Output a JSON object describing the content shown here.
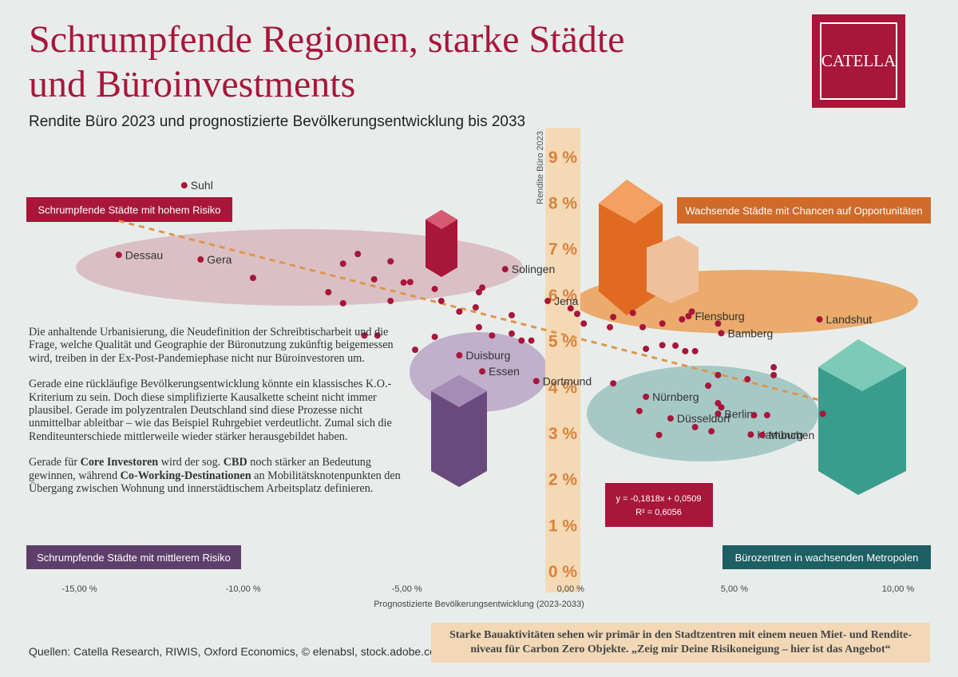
{
  "header": {
    "title_lines": [
      "Schrumpfende Regionen, starke Städte",
      "und Büroinvestments"
    ],
    "logo": "CATELLA"
  },
  "chart_data": {
    "type": "scatter",
    "title": "Rendite Büro 2023 und prognostizierte Bevölkerungsentwicklung bis 2033",
    "x_label": "Prognostizierte Bevölkerungsentwicklung (2023-2033)",
    "y_label": "Rendite Büro 2023",
    "xlim": [
      -16.5,
      11
    ],
    "ylim": [
      0,
      9.5
    ],
    "xticks": [
      {
        "value": -15,
        "label": "-15,00 %"
      },
      {
        "value": -10,
        "label": "-10,00 %"
      },
      {
        "value": -5,
        "label": "-5,00 %"
      },
      {
        "value": 0,
        "label": "0,00 %"
      },
      {
        "value": 5,
        "label": "5,00 %"
      },
      {
        "value": 10,
        "label": "10,00 %"
      }
    ],
    "yticks": [
      {
        "value": 0,
        "label": "0 %"
      },
      {
        "value": 1,
        "label": "1 %"
      },
      {
        "value": 2,
        "label": "2 %"
      },
      {
        "value": 3,
        "label": "3 %"
      },
      {
        "value": 4,
        "label": "4 %"
      },
      {
        "value": 5,
        "label": "5 %"
      },
      {
        "value": 6,
        "label": "6 %"
      },
      {
        "value": 7,
        "label": "7 %"
      },
      {
        "value": 8,
        "label": "8 %"
      },
      {
        "value": 9,
        "label": "9 %"
      }
    ],
    "color": "#a8163a",
    "x": [
      -11.8,
      -13.8,
      -11.3,
      -2.0,
      -0.7,
      3.6,
      7.6,
      4.6,
      -3.4,
      -2.7,
      -1.05,
      2.3,
      3.05,
      4.5,
      5.5,
      5.85,
      -9.7,
      -6.95,
      -6.5,
      -5.5,
      -7.4,
      -6.0,
      -5.1,
      -4.9,
      -5.5,
      -4.15,
      -3.95,
      -2.8,
      -2.7,
      -3.4,
      -2.9,
      -1.8,
      -2.8,
      -2.4,
      -1.8,
      -1.5,
      -1.2,
      -4.15,
      -4.75,
      -5.9,
      -6.3,
      -6.95,
      0.0,
      0.2,
      0.4,
      1.2,
      1.3,
      1.9,
      2.2,
      2.8,
      3.4,
      3.7,
      4.5,
      2.3,
      2.8,
      3.2,
      3.5,
      3.8,
      1.3,
      4.2,
      4.5,
      5.4,
      6.2,
      6.2,
      2.1,
      3.8,
      4.5,
      4.6,
      5.6,
      6.0,
      7.7,
      2.7,
      4.3
    ],
    "values": [
      8.37,
      6.86,
      6.76,
      6.55,
      5.86,
      5.53,
      5.46,
      5.16,
      4.68,
      4.33,
      4.12,
      3.78,
      3.31,
      3.41,
      2.96,
      2.95,
      6.36,
      6.67,
      6.88,
      6.72,
      6.05,
      6.33,
      6.26,
      6.27,
      5.86,
      6.12,
      5.86,
      6.05,
      6.15,
      5.63,
      5.72,
      5.55,
      5.29,
      5.11,
      5.15,
      5.0,
      5.0,
      5.08,
      4.8,
      5.11,
      5.11,
      5.81,
      5.7,
      5.58,
      5.37,
      5.29,
      5.51,
      5.6,
      5.29,
      5.37,
      5.46,
      5.63,
      5.37,
      4.82,
      4.9,
      4.89,
      4.77,
      4.77,
      4.07,
      4.02,
      4.25,
      4.16,
      4.42,
      4.25,
      3.47,
      3.12,
      3.64,
      3.55,
      3.38,
      3.38,
      3.41,
      2.95,
      3.03
    ],
    "point_labels": [
      "Suhl",
      "Dessau",
      "Gera",
      "Solingen",
      "Jena",
      "Flensburg",
      "Landshut",
      "Bamberg",
      "Duisburg",
      "Essen",
      "Dortmund",
      "Nürnberg",
      "Düsseldorf",
      "Berlin",
      "Hamburg",
      "München",
      null,
      null,
      null,
      null,
      null,
      null,
      null,
      null,
      null,
      null,
      null,
      null,
      null,
      null,
      null,
      null,
      null,
      null,
      null,
      null,
      null,
      null,
      null,
      null,
      null,
      null,
      null,
      null,
      null,
      null,
      null,
      null,
      null,
      null,
      null,
      null,
      null,
      null,
      null,
      null,
      null,
      null,
      null,
      null,
      null,
      null,
      null,
      null,
      null,
      null,
      null,
      null,
      null,
      null,
      null,
      null,
      null
    ],
    "trendline": {
      "slope": -0.1818,
      "intercept": 5.09,
      "color": "#e0954a",
      "dashed": true
    },
    "equation": [
      "y =  -0,1818x + 0,0509",
      "R² = 0,6056"
    ],
    "quadrants": [
      {
        "label": "Schrumpfende Städte mit hohem Risiko",
        "color": "#a8163a"
      },
      {
        "label": "Wachsende Städte mit Chancen auf Opportunitäten",
        "color": "#d06a2a"
      },
      {
        "label": "Schrumpfende Städte mit mittlerem Risiko",
        "color": "#5e3f6b"
      },
      {
        "label": "Bürozentren in wachsenden Metropolen",
        "color": "#1e5f63"
      }
    ]
  },
  "text": {
    "paragraphs": [
      [
        {
          "text": "Die anhaltende Urbanisierung, die Neudefinition der Schreibtischarbeit und die Frage, welche Qualität und Geographie der Büronutzung zukünftig beigemessen wird, treiben in der Ex-Post-Pandemiephase nicht nur Büroinvestoren um.",
          "bold": false
        }
      ],
      [
        {
          "text": "Gerade eine rückläufige Bevölkerungsentwicklung könnte ein klassisches K.O.-Kriterium zu sein. Doch diese simplifizierte Kausalkette scheint nicht immer plausibel. Gerade im polyzentralen Deutschland sind diese Prozesse nicht unmittelbar ableitbar – wie das Beispiel Ruhrgebiet verdeutlicht. Zumal sich die Renditeunterschiede  mittlerweile wieder stärker herausgebildet haben.",
          "bold": false
        }
      ],
      [
        {
          "text": "Gerade für ",
          "bold": false
        },
        {
          "text": "Core Investoren",
          "bold": true
        },
        {
          "text": " wird der sog. ",
          "bold": false
        },
        {
          "text": "CBD",
          "bold": true
        },
        {
          "text": " noch stärker an Bedeutung gewinnen, während ",
          "bold": false
        },
        {
          "text": "Co-Working-Destinationen",
          "bold": true
        },
        {
          "text": " an Mobilitätsknotenpunkten den Übergang zwischen Wohnung und innerstädtischem Arbeitsplatz definieren.",
          "bold": false
        }
      ]
    ]
  },
  "sources": "Quellen: Catella Research, RIWIS, Oxford Economics, © elenabsl, stock.adobe.com",
  "quote_lines": [
    "Starke Bauaktivitäten sehen wir primär in den Stadtzentren mit einem neuen Miet- und Rendite-",
    "niveau für Carbon Zero Objekte. „Zeig mir Deine Risikoneigung – hier ist das Angebot“"
  ]
}
